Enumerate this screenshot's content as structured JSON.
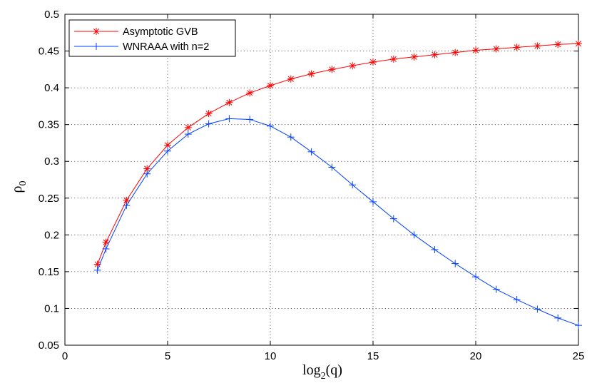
{
  "chart_data": {
    "type": "line",
    "title": "",
    "xlabel": {
      "base": "log",
      "sub": "2",
      "rest": "(q)"
    },
    "ylabel": {
      "base": "ρ",
      "sub": "0"
    },
    "xlim": [
      0,
      25
    ],
    "ylim": [
      0.05,
      0.5
    ],
    "grid": true,
    "legend_position": "top-left",
    "x_ticks": [
      0,
      5,
      10,
      15,
      20,
      25
    ],
    "x_tick_labels": [
      "0",
      "5",
      "10",
      "15",
      "20",
      "25"
    ],
    "y_ticks": [
      0.05,
      0.1,
      0.15,
      0.2,
      0.25,
      0.3,
      0.35,
      0.4,
      0.45,
      0.5
    ],
    "y_tick_labels": [
      "0.05",
      "0.1",
      "0.15",
      "0.2",
      "0.25",
      "0.3",
      "0.35",
      "0.4",
      "0.45",
      "0.5"
    ],
    "series": [
      {
        "name": "Asymptotic GVB",
        "color": "#ff0000",
        "marker": "star",
        "x": [
          1.585,
          2,
          3,
          4,
          5,
          6,
          7,
          8,
          9,
          10,
          11,
          12,
          13,
          14,
          15,
          16,
          17,
          18,
          19,
          20,
          21,
          22,
          23,
          24,
          25
        ],
        "values": [
          0.16,
          0.19,
          0.247,
          0.29,
          0.322,
          0.346,
          0.365,
          0.38,
          0.393,
          0.403,
          0.412,
          0.419,
          0.425,
          0.43,
          0.435,
          0.439,
          0.442,
          0.445,
          0.448,
          0.451,
          0.453,
          0.455,
          0.457,
          0.459,
          0.46
        ]
      },
      {
        "name": "WNRAAA with n=2",
        "color": "#0040ff",
        "marker": "plus",
        "x": [
          1.585,
          2,
          3,
          4,
          5,
          6,
          7,
          8,
          9,
          10,
          11,
          12,
          13,
          14,
          15,
          16,
          17,
          18,
          19,
          20,
          21,
          22,
          23,
          24,
          25
        ],
        "values": [
          0.152,
          0.181,
          0.24,
          0.283,
          0.314,
          0.337,
          0.351,
          0.358,
          0.357,
          0.348,
          0.333,
          0.313,
          0.292,
          0.268,
          0.245,
          0.222,
          0.2,
          0.18,
          0.161,
          0.143,
          0.126,
          0.112,
          0.099,
          0.087,
          0.077
        ]
      }
    ]
  }
}
